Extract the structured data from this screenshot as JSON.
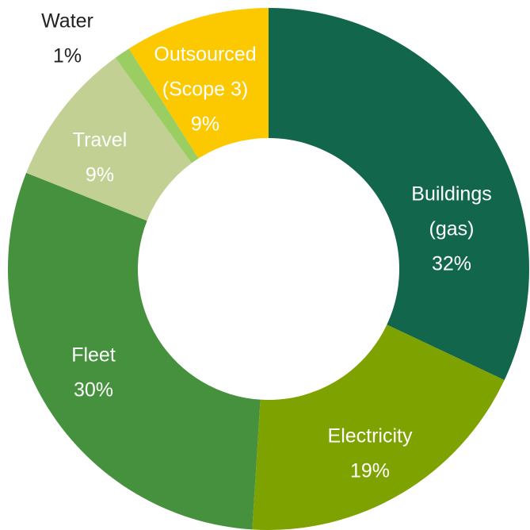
{
  "chart_data": {
    "type": "pie",
    "variant": "donut",
    "slices": [
      {
        "label": [
          "Buildings",
          "(gas)"
        ],
        "value": 32,
        "display": "32%",
        "color": "#12664B",
        "label_color": "#ffffff"
      },
      {
        "label": [
          "Electricity"
        ],
        "value": 19,
        "display": "19%",
        "color": "#7EA200",
        "label_color": "#ffffff"
      },
      {
        "label": [
          "Fleet"
        ],
        "value": 30,
        "display": "30%",
        "color": "#46913D",
        "label_color": "#ffffff"
      },
      {
        "label": [
          "Travel"
        ],
        "value": 9,
        "display": "9%",
        "color": "#C2D094",
        "label_color": "#ffffff"
      },
      {
        "label": [
          "Water"
        ],
        "value": 1,
        "display": "1%",
        "color": "#9ACD62",
        "label_color": "#222222"
      },
      {
        "label": [
          "Outsourced",
          "(Scope 3)"
        ],
        "value": 9,
        "display": "9%",
        "color": "#FCC900",
        "label_color": "#ffffff"
      }
    ],
    "legend": "none",
    "labels": "on-slice"
  }
}
